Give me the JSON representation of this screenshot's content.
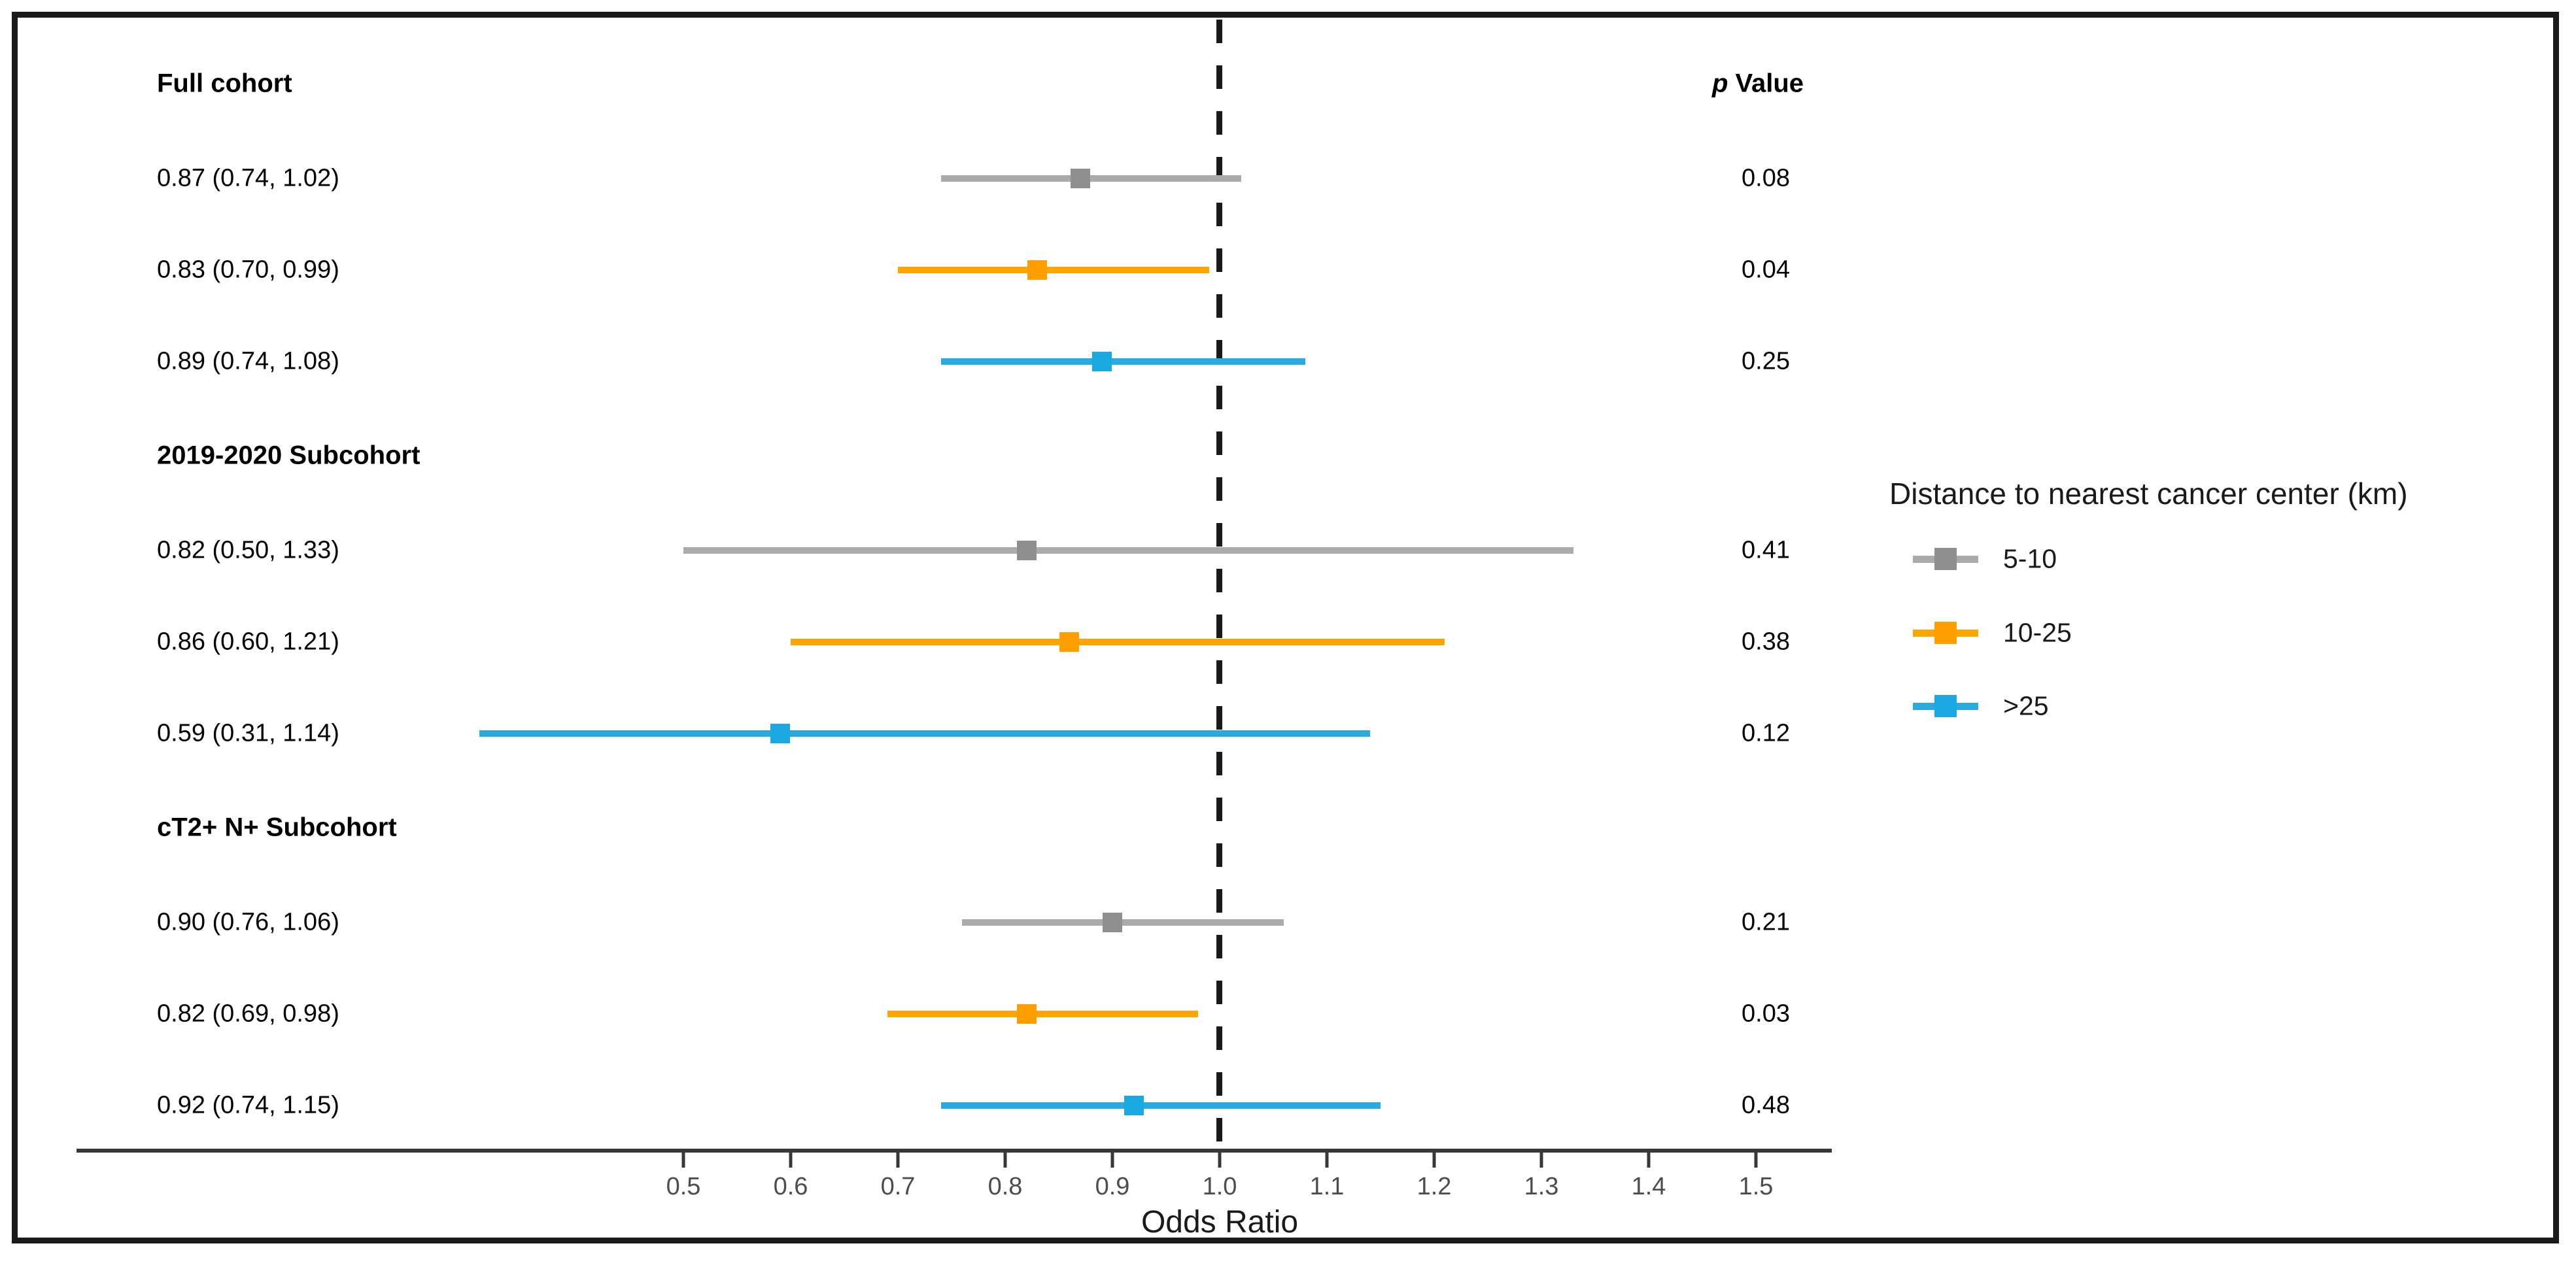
{
  "p_column": {
    "header_italic": "p",
    "header_rest": " Value"
  },
  "axis": {
    "label": "Odds Ratio",
    "ticks": [
      {
        "value": 0.5,
        "label": "0.5"
      },
      {
        "value": 0.6,
        "label": "0.6"
      },
      {
        "value": 0.7,
        "label": "0.7"
      },
      {
        "value": 0.8,
        "label": "0.8"
      },
      {
        "value": 0.9,
        "label": "0.9"
      },
      {
        "value": 1.0,
        "label": "1.0"
      },
      {
        "value": 1.1,
        "label": "1.1"
      },
      {
        "value": 1.2,
        "label": "1.2"
      },
      {
        "value": 1.3,
        "label": "1.3"
      },
      {
        "value": 1.4,
        "label": "1.4"
      },
      {
        "value": 1.5,
        "label": "1.5"
      }
    ]
  },
  "legend": {
    "title": "Distance to nearest cancer center (km)",
    "items": [
      {
        "label": "5-10",
        "line_color": "#ababab",
        "marker_color": "#8f8f8f"
      },
      {
        "label": "10-25",
        "line_color": "#ffa500",
        "marker_color": "#ff9e00"
      },
      {
        "label": ">25",
        "line_color": "#29abe2",
        "marker_color": "#1ba7e0"
      }
    ]
  },
  "chart_data": {
    "type": "forest",
    "xlabel": "Odds Ratio",
    "x_range": [
      0.5,
      1.5
    ],
    "reference_line": 1.0,
    "legend_title": "Distance to nearest cancer center (km)",
    "series_names": [
      "5-10",
      "10-25",
      ">25"
    ],
    "groups": [
      {
        "label": "Full cohort",
        "rows": [
          {
            "label": "0.87 (0.74, 1.02)",
            "or": 0.87,
            "ci_low": 0.74,
            "ci_high": 1.02,
            "p": "0.08",
            "series": "5-10"
          },
          {
            "label": "0.83 (0.70, 0.99)",
            "or": 0.83,
            "ci_low": 0.7,
            "ci_high": 0.99,
            "p": "0.04",
            "series": "10-25"
          },
          {
            "label": "0.89 (0.74, 1.08)",
            "or": 0.89,
            "ci_low": 0.74,
            "ci_high": 1.08,
            "p": "0.25",
            "series": ">25"
          }
        ]
      },
      {
        "label": "2019-2020 Subcohort",
        "rows": [
          {
            "label": "0.82 (0.50, 1.33)",
            "or": 0.82,
            "ci_low": 0.5,
            "ci_high": 1.33,
            "p": "0.41",
            "series": "5-10"
          },
          {
            "label": "0.86 (0.60, 1.21)",
            "or": 0.86,
            "ci_low": 0.6,
            "ci_high": 1.21,
            "p": "0.38",
            "series": "10-25"
          },
          {
            "label": "0.59 (0.31, 1.14)",
            "or": 0.59,
            "ci_low": 0.31,
            "ci_high": 1.14,
            "p": "0.12",
            "series": ">25"
          }
        ]
      },
      {
        "label": "cT2+ N+ Subcohort",
        "rows": [
          {
            "label": "0.90 (0.76, 1.06)",
            "or": 0.9,
            "ci_low": 0.76,
            "ci_high": 1.06,
            "p": "0.21",
            "series": "5-10"
          },
          {
            "label": "0.82 (0.69, 0.98)",
            "or": 0.82,
            "ci_low": 0.69,
            "ci_high": 0.98,
            "p": "0.03",
            "series": "10-25"
          },
          {
            "label": "0.92 (0.74, 1.15)",
            "or": 0.92,
            "ci_low": 0.74,
            "ci_high": 1.15,
            "p": "0.48",
            "series": ">25"
          }
        ]
      }
    ]
  }
}
